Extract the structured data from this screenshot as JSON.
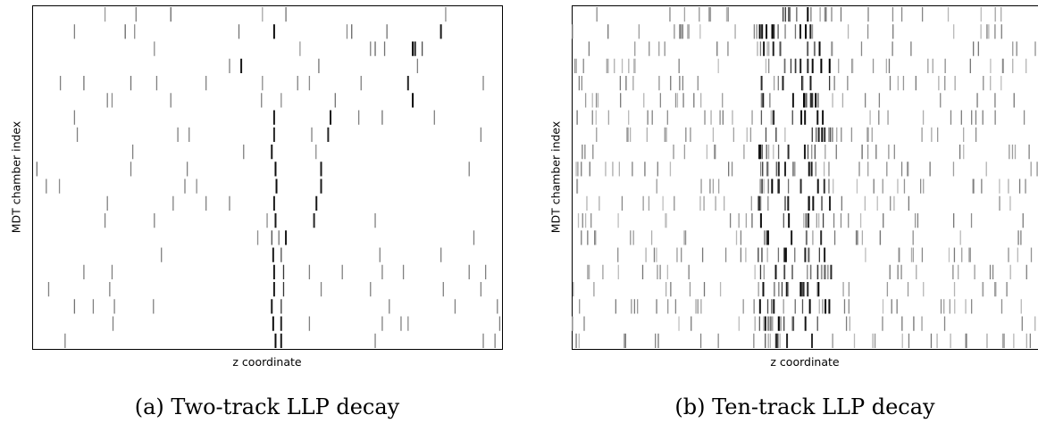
{
  "chart_data": [
    {
      "type": "heatmap",
      "caption": "(a) Two-track LLP decay",
      "xlabel": "z coordinate",
      "ylabel": "MDT chamber index",
      "xlim": [
        0,
        1
      ],
      "rows": 19,
      "grid": false,
      "hits": [
        [
          0.221,
          0,
          0.5
        ],
        [
          0.295,
          0,
          0.6
        ],
        [
          0.49,
          0,
          0.35
        ],
        [
          0.155,
          0,
          0.4
        ],
        [
          0.54,
          0,
          0.55
        ],
        [
          0.88,
          0,
          0.45
        ],
        [
          0.09,
          1,
          0.5
        ],
        [
          0.198,
          1,
          0.6
        ],
        [
          0.218,
          1,
          0.45
        ],
        [
          0.44,
          1,
          0.55
        ],
        [
          0.67,
          1,
          0.45
        ],
        [
          0.68,
          1,
          0.6
        ],
        [
          0.755,
          1,
          0.55
        ],
        [
          0.87,
          1,
          0.9
        ],
        [
          0.515,
          1,
          0.95
        ],
        [
          0.57,
          2,
          0.4
        ],
        [
          0.72,
          2,
          0.5
        ],
        [
          0.73,
          2,
          0.6
        ],
        [
          0.75,
          2,
          0.55
        ],
        [
          0.81,
          2,
          0.95
        ],
        [
          0.815,
          2,
          0.85
        ],
        [
          0.83,
          2,
          0.7
        ],
        [
          0.26,
          2,
          0.45
        ],
        [
          0.42,
          3,
          0.5
        ],
        [
          0.445,
          3,
          0.9
        ],
        [
          0.82,
          3,
          0.5
        ],
        [
          0.61,
          3,
          0.55
        ],
        [
          0.06,
          4,
          0.5
        ],
        [
          0.11,
          4,
          0.55
        ],
        [
          0.21,
          4,
          0.55
        ],
        [
          0.265,
          4,
          0.5
        ],
        [
          0.37,
          4,
          0.5
        ],
        [
          0.49,
          4,
          0.45
        ],
        [
          0.565,
          4,
          0.5
        ],
        [
          0.59,
          4,
          0.45
        ],
        [
          0.7,
          4,
          0.5
        ],
        [
          0.8,
          4,
          0.85
        ],
        [
          0.96,
          4,
          0.5
        ],
        [
          0.16,
          5,
          0.5
        ],
        [
          0.17,
          5,
          0.45
        ],
        [
          0.295,
          5,
          0.5
        ],
        [
          0.488,
          5,
          0.5
        ],
        [
          0.53,
          5,
          0.45
        ],
        [
          0.645,
          5,
          0.55
        ],
        [
          0.81,
          5,
          0.95
        ],
        [
          0.09,
          6,
          0.5
        ],
        [
          0.515,
          6,
          0.9
        ],
        [
          0.635,
          6,
          0.9
        ],
        [
          0.695,
          6,
          0.5
        ],
        [
          0.745,
          6,
          0.55
        ],
        [
          0.856,
          6,
          0.5
        ],
        [
          0.096,
          7,
          0.5
        ],
        [
          0.31,
          7,
          0.5
        ],
        [
          0.334,
          7,
          0.5
        ],
        [
          0.515,
          7,
          0.85
        ],
        [
          0.595,
          7,
          0.5
        ],
        [
          0.63,
          7,
          0.85
        ],
        [
          0.955,
          7,
          0.5
        ],
        [
          0.214,
          8,
          0.5
        ],
        [
          0.51,
          8,
          0.9
        ],
        [
          0.45,
          8,
          0.5
        ],
        [
          0.604,
          8,
          0.45
        ],
        [
          0.01,
          9,
          0.55
        ],
        [
          0.21,
          9,
          0.5
        ],
        [
          0.33,
          9,
          0.5
        ],
        [
          0.518,
          9,
          0.95
        ],
        [
          0.615,
          9,
          0.9
        ],
        [
          0.93,
          9,
          0.5
        ],
        [
          0.03,
          10,
          0.5
        ],
        [
          0.058,
          10,
          0.45
        ],
        [
          0.325,
          10,
          0.5
        ],
        [
          0.35,
          10,
          0.45
        ],
        [
          0.52,
          10,
          0.95
        ],
        [
          0.615,
          10,
          0.9
        ],
        [
          0.16,
          11,
          0.5
        ],
        [
          0.3,
          11,
          0.5
        ],
        [
          0.37,
          11,
          0.5
        ],
        [
          0.42,
          11,
          0.5
        ],
        [
          0.515,
          11,
          0.9
        ],
        [
          0.605,
          11,
          0.9
        ],
        [
          0.155,
          12,
          0.5
        ],
        [
          0.26,
          12,
          0.5
        ],
        [
          0.5,
          12,
          0.45
        ],
        [
          0.518,
          12,
          0.9
        ],
        [
          0.6,
          12,
          0.85
        ],
        [
          0.73,
          12,
          0.5
        ],
        [
          0.54,
          13,
          0.9
        ],
        [
          0.525,
          13,
          0.55
        ],
        [
          0.48,
          13,
          0.45
        ],
        [
          0.51,
          13,
          0.7
        ],
        [
          0.94,
          13,
          0.5
        ],
        [
          0.275,
          14,
          0.5
        ],
        [
          0.513,
          14,
          0.9
        ],
        [
          0.53,
          14,
          0.7
        ],
        [
          0.74,
          14,
          0.5
        ],
        [
          0.87,
          14,
          0.5
        ],
        [
          0.11,
          15,
          0.5
        ],
        [
          0.17,
          15,
          0.5
        ],
        [
          0.515,
          15,
          0.9
        ],
        [
          0.535,
          15,
          0.8
        ],
        [
          0.59,
          15,
          0.5
        ],
        [
          0.66,
          15,
          0.5
        ],
        [
          0.745,
          15,
          0.5
        ],
        [
          0.79,
          15,
          0.5
        ],
        [
          0.93,
          15,
          0.5
        ],
        [
          0.965,
          15,
          0.5
        ],
        [
          0.035,
          16,
          0.5
        ],
        [
          0.165,
          16,
          0.5
        ],
        [
          0.515,
          16,
          0.9
        ],
        [
          0.535,
          16,
          0.8
        ],
        [
          0.615,
          16,
          0.5
        ],
        [
          0.72,
          16,
          0.5
        ],
        [
          0.875,
          16,
          0.5
        ],
        [
          0.955,
          16,
          0.5
        ],
        [
          0.09,
          17,
          0.55
        ],
        [
          0.13,
          17,
          0.5
        ],
        [
          0.175,
          17,
          0.5
        ],
        [
          0.258,
          17,
          0.5
        ],
        [
          0.51,
          17,
          0.9
        ],
        [
          0.53,
          17,
          0.8
        ],
        [
          0.76,
          17,
          0.5
        ],
        [
          0.9,
          17,
          0.5
        ],
        [
          0.99,
          17,
          0.5
        ],
        [
          0.172,
          18,
          0.5
        ],
        [
          0.513,
          18,
          0.95
        ],
        [
          0.53,
          18,
          0.85
        ],
        [
          0.59,
          18,
          0.5
        ],
        [
          0.745,
          18,
          0.5
        ],
        [
          0.785,
          18,
          0.5
        ],
        [
          0.8,
          18,
          0.45
        ],
        [
          0.995,
          18,
          0.5
        ],
        [
          0.07,
          19,
          0.5
        ],
        [
          0.518,
          19,
          0.95
        ],
        [
          0.53,
          19,
          0.9
        ],
        [
          0.73,
          19,
          0.5
        ],
        [
          0.96,
          19,
          0.5
        ],
        [
          0.985,
          19,
          0.5
        ]
      ]
    },
    {
      "type": "heatmap",
      "caption": "(b) Ten-track LLP decay",
      "xlabel": "z coordinate",
      "ylabel": "MDT chamber index",
      "xlim": [
        0,
        1
      ],
      "rows": 19,
      "grid": false,
      "density": "high",
      "seed": 7
    }
  ]
}
